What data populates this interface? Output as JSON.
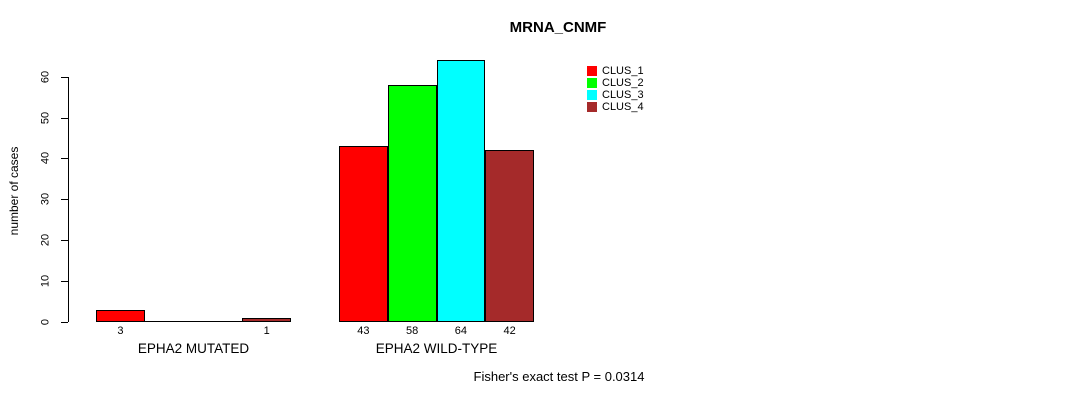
{
  "chart_data": {
    "type": "bar",
    "title": "MRNA_CNMF",
    "ylabel": "number of cases",
    "xlabel": "",
    "ylim": [
      0,
      60
    ],
    "yticks": [
      0,
      10,
      20,
      30,
      40,
      50,
      60
    ],
    "grid": false,
    "legend_position": "top-right",
    "categories": [
      "EPHA2 MUTATED",
      "EPHA2 WILD-TYPE"
    ],
    "series": [
      {
        "name": "CLUS_1",
        "color": "#ff0000",
        "values": [
          3,
          43
        ]
      },
      {
        "name": "CLUS_2",
        "color": "#00ff00",
        "values": [
          0,
          58
        ]
      },
      {
        "name": "CLUS_3",
        "color": "#00ffff",
        "values": [
          0,
          64
        ]
      },
      {
        "name": "CLUS_4",
        "color": "#a52a2a",
        "values": [
          1,
          42
        ]
      }
    ],
    "bar_value_labels": [
      [
        "3",
        "",
        "",
        "1"
      ],
      [
        "43",
        "58",
        "64",
        "42"
      ]
    ],
    "footnote": "Fisher's exact test P = 0.0314",
    "colors": {
      "axis": "#000000",
      "text": "#000000",
      "background": "#ffffff"
    }
  }
}
